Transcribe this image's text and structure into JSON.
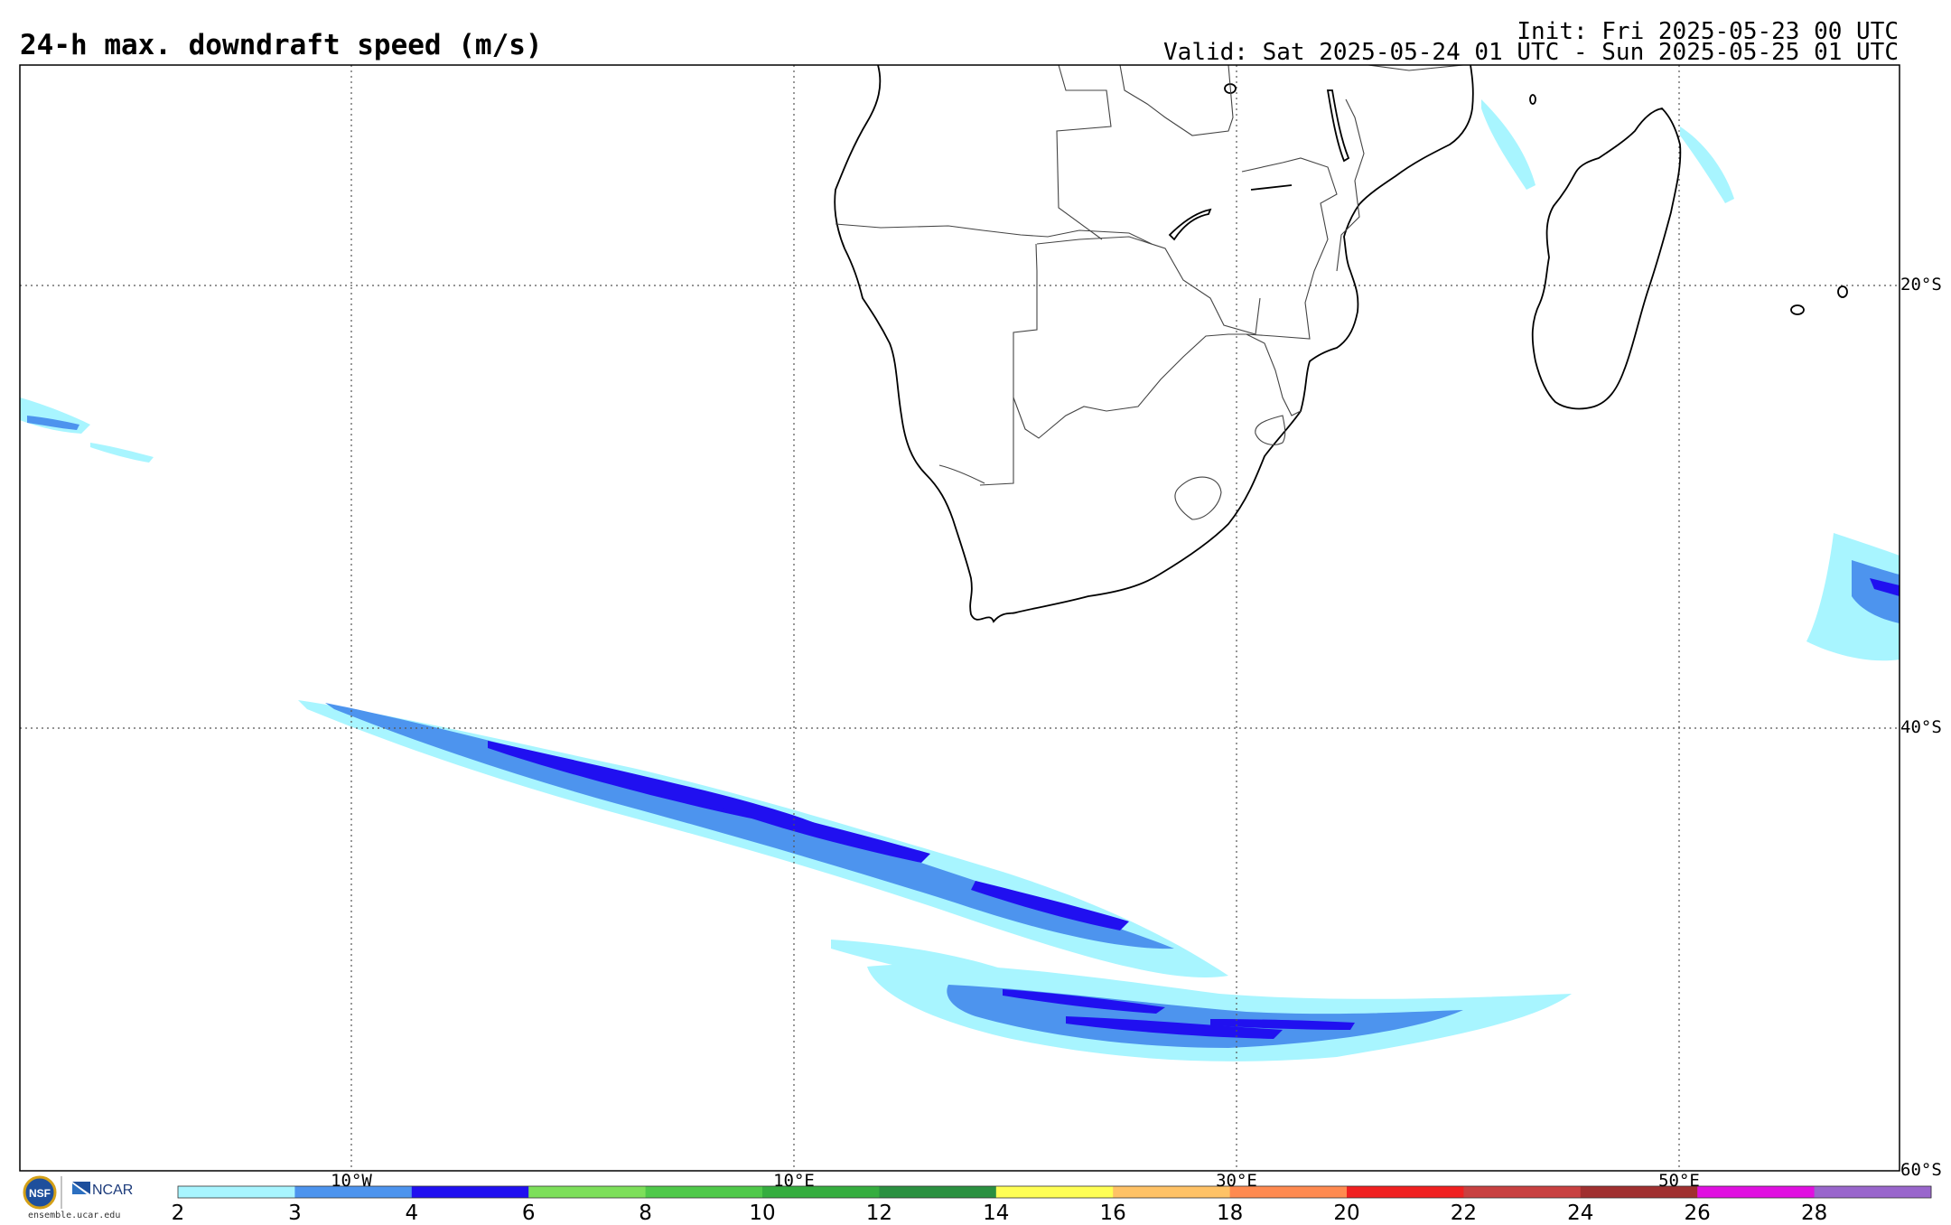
{
  "header": {
    "title": "24-h max. downdraft speed (m/s)",
    "init": "Init: Fri 2025-05-23 00 UTC",
    "valid": "Valid: Sat 2025-05-24 01 UTC - Sun 2025-05-25 01 UTC"
  },
  "map": {
    "lat_labels": [
      "20°S",
      "40°S",
      "60°S"
    ],
    "lon_labels": [
      "10°W",
      "10°E",
      "30°E",
      "50°E"
    ],
    "grid_style": "dotted",
    "region": "Southern Africa and South Atlantic / Indian Ocean"
  },
  "colorbar": {
    "ticks": [
      "2",
      "3",
      "4",
      "6",
      "8",
      "10",
      "12",
      "14",
      "16",
      "18",
      "20",
      "22",
      "24",
      "26",
      "28"
    ],
    "colors": [
      "#a8f5ff",
      "#4d94ee",
      "#2010f0",
      "#7ddf5a",
      "#4fc94a",
      "#35ad3f",
      "#2a9040",
      "#ffff55",
      "#ffc266",
      "#ff8a50",
      "#f02020",
      "#c84040",
      "#a03030",
      "#e010e0",
      "#9966cc"
    ]
  },
  "logos": {
    "nsf": "NSF",
    "ncar": "NCAR",
    "website": "ensemble.ucar.edu"
  }
}
